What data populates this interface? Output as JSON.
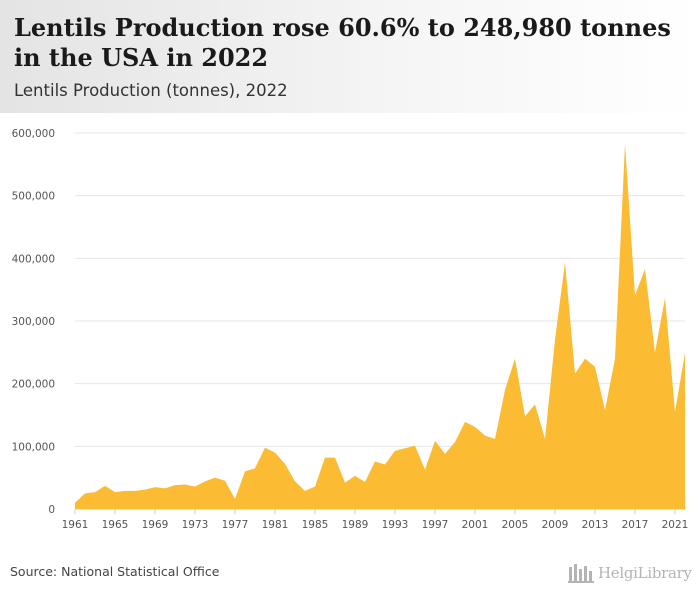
{
  "header": {
    "title": "Lentils Production rose 60.6% to 248,980 tonnes in the USA in 2022",
    "subtitle": "Lentils Production (tonnes), 2022"
  },
  "footer": {
    "source": "Source: National Statistical Office",
    "logo_text": "HelgiLibrary"
  },
  "colors": {
    "area_fill": "#fbbc33",
    "gridline": "#e6e6e6",
    "axis": "#cccccc"
  },
  "chart_data": {
    "type": "area",
    "title": "Lentils Production (tonnes), 2022",
    "xlabel": "",
    "ylabel": "",
    "xlim": [
      1961,
      2022
    ],
    "ylim": [
      0,
      600000
    ],
    "yticks": [
      0,
      100000,
      200000,
      300000,
      400000,
      500000,
      600000
    ],
    "ytick_labels": [
      "0",
      "100,000",
      "200,000",
      "300,000",
      "400,000",
      "500,000",
      "600,000"
    ],
    "xticks": [
      1961,
      1965,
      1969,
      1973,
      1977,
      1981,
      1985,
      1989,
      1993,
      1997,
      2001,
      2005,
      2009,
      2013,
      2017,
      2021
    ],
    "grid": true,
    "series": [
      {
        "x": [
          1961,
          1962,
          1963,
          1964,
          1965,
          1966,
          1967,
          1968,
          1969,
          1970,
          1971,
          1972,
          1973,
          1974,
          1975,
          1976,
          1977,
          1978,
          1979,
          1980,
          1981,
          1982,
          1983,
          1984,
          1985,
          1986,
          1987,
          1988,
          1989,
          1990,
          1991,
          1992,
          1993,
          1994,
          1995,
          1996,
          1997,
          1998,
          1999,
          2000,
          2001,
          2002,
          2003,
          2004,
          2005,
          2006,
          2007,
          2008,
          2009,
          2010,
          2011,
          2012,
          2013,
          2014,
          2015,
          2016,
          2017,
          2018,
          2019,
          2020,
          2021,
          2022
        ],
        "values": [
          10000,
          25000,
          27000,
          37000,
          27000,
          29000,
          29000,
          31000,
          35000,
          33000,
          38000,
          39000,
          36000,
          44000,
          50000,
          45000,
          16000,
          60000,
          65000,
          98000,
          90000,
          72000,
          44000,
          29000,
          36000,
          82000,
          82000,
          42000,
          53000,
          43000,
          76000,
          71000,
          93000,
          97000,
          101000,
          63000,
          109000,
          88000,
          107000,
          139000,
          131000,
          117000,
          112000,
          190000,
          240000,
          148000,
          167000,
          112000,
          270000,
          394000,
          216000,
          240000,
          227000,
          158000,
          240000,
          582000,
          341000,
          383000,
          250000,
          337000,
          155000,
          248980
        ]
      }
    ]
  }
}
